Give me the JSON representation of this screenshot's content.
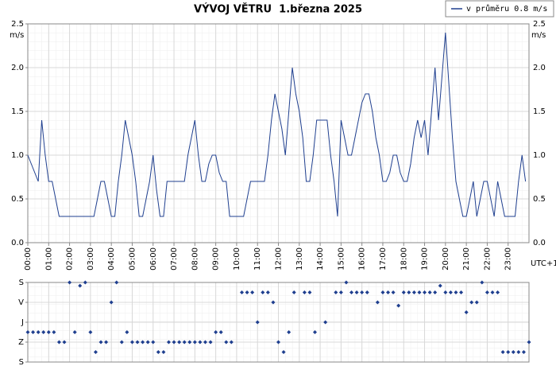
{
  "chart_data": [
    {
      "type": "line",
      "title": "VÝVOJ VĚTRU  1.března 2025",
      "y_label": "m/s",
      "x_label": "UTC+1",
      "x": [
        0,
        10,
        20,
        30,
        40,
        50,
        60,
        70,
        80,
        90,
        100,
        110,
        120,
        130,
        140,
        150,
        160,
        170,
        180,
        190,
        200,
        210,
        220,
        230,
        240,
        250,
        260,
        270,
        280,
        290,
        300,
        310,
        320,
        330,
        340,
        350,
        360,
        370,
        380,
        390,
        400,
        410,
        420,
        430,
        440,
        450,
        460,
        470,
        480,
        490,
        500,
        510,
        520,
        530,
        540,
        550,
        560,
        570,
        580,
        590,
        600,
        610,
        620,
        630,
        640,
        650,
        660,
        670,
        680,
        690,
        700,
        710,
        720,
        730,
        740,
        750,
        760,
        770,
        780,
        790,
        800,
        810,
        820,
        830,
        840,
        850,
        860,
        870,
        880,
        890,
        900,
        910,
        920,
        930,
        940,
        950,
        960,
        970,
        980,
        990,
        1000,
        1010,
        1020,
        1030,
        1040,
        1050,
        1060,
        1070,
        1080,
        1090,
        1100,
        1110,
        1120,
        1130,
        1140,
        1150,
        1160,
        1170,
        1180,
        1190,
        1200,
        1210,
        1220,
        1230,
        1240,
        1250,
        1260,
        1270,
        1280,
        1290,
        1300,
        1310,
        1320,
        1330,
        1340,
        1350,
        1360,
        1370,
        1380,
        1390,
        1400,
        1410,
        1420,
        1430
      ],
      "series": [
        {
          "name": "v průměru 0.8 m/s",
          "color": "#1f3f8f",
          "values": [
            1.0,
            0.9,
            0.8,
            0.7,
            1.4,
            1.0,
            0.7,
            0.7,
            0.5,
            0.3,
            0.3,
            0.3,
            0.3,
            0.3,
            0.3,
            0.3,
            0.3,
            0.3,
            0.3,
            0.3,
            0.5,
            0.7,
            0.7,
            0.5,
            0.3,
            0.3,
            0.7,
            1.0,
            1.4,
            1.2,
            1.0,
            0.7,
            0.3,
            0.3,
            0.5,
            0.7,
            1.0,
            0.6,
            0.3,
            0.3,
            0.7,
            0.7,
            0.7,
            0.7,
            0.7,
            0.7,
            1.0,
            1.2,
            1.4,
            1.0,
            0.7,
            0.7,
            0.9,
            1.0,
            1.0,
            0.8,
            0.7,
            0.7,
            0.3,
            0.3,
            0.3,
            0.3,
            0.3,
            0.5,
            0.7,
            0.7,
            0.7,
            0.7,
            0.7,
            1.0,
            1.4,
            1.7,
            1.5,
            1.3,
            1.0,
            1.5,
            2.0,
            1.7,
            1.5,
            1.2,
            0.7,
            0.7,
            1.0,
            1.4,
            1.4,
            1.4,
            1.4,
            1.0,
            0.7,
            0.3,
            1.4,
            1.2,
            1.0,
            1.0,
            1.2,
            1.4,
            1.6,
            1.7,
            1.7,
            1.5,
            1.2,
            1.0,
            0.7,
            0.7,
            0.8,
            1.0,
            1.0,
            0.8,
            0.7,
            0.7,
            0.9,
            1.2,
            1.4,
            1.2,
            1.4,
            1.0,
            1.5,
            2.0,
            1.4,
            1.9,
            2.4,
            1.8,
            1.2,
            0.7,
            0.5,
            0.3,
            0.3,
            0.5,
            0.7,
            0.3,
            0.5,
            0.7,
            0.7,
            0.5,
            0.3,
            0.7,
            0.5,
            0.3,
            0.3,
            0.3,
            0.3,
            0.7,
            1.0,
            0.7
          ]
        }
      ],
      "xlim": [
        0,
        1440
      ],
      "xticks": [
        {
          "value": 0,
          "label": "00:00"
        },
        {
          "value": 60,
          "label": "01:00"
        },
        {
          "value": 120,
          "label": "02:00"
        },
        {
          "value": 180,
          "label": "03:00"
        },
        {
          "value": 240,
          "label": "04:00"
        },
        {
          "value": 300,
          "label": "05:00"
        },
        {
          "value": 360,
          "label": "06:00"
        },
        {
          "value": 420,
          "label": "07:00"
        },
        {
          "value": 480,
          "label": "08:00"
        },
        {
          "value": 540,
          "label": "09:00"
        },
        {
          "value": 600,
          "label": "10:00"
        },
        {
          "value": 660,
          "label": "11:00"
        },
        {
          "value": 720,
          "label": "12:00"
        },
        {
          "value": 780,
          "label": "13:00"
        },
        {
          "value": 840,
          "label": "14:00"
        },
        {
          "value": 900,
          "label": "15:00"
        },
        {
          "value": 960,
          "label": "16:00"
        },
        {
          "value": 1020,
          "label": "17:00"
        },
        {
          "value": 1080,
          "label": "18:00"
        },
        {
          "value": 1140,
          "label": "19:00"
        },
        {
          "value": 1200,
          "label": "20:00"
        },
        {
          "value": 1260,
          "label": "21:00"
        },
        {
          "value": 1320,
          "label": "22:00"
        },
        {
          "value": 1380,
          "label": "23:00"
        }
      ],
      "ylim": [
        0,
        2.5
      ],
      "yticks": [
        {
          "value": 0,
          "label": "0.0"
        },
        0.5,
        {
          "value": 1,
          "label": "1.0"
        },
        1.5,
        {
          "value": 2,
          "label": "2.0"
        },
        2.5
      ],
      "grid": true,
      "legend": "top-right"
    },
    {
      "type": "scatter",
      "color": "#1f3f8f",
      "x": [
        0,
        15,
        30,
        45,
        60,
        75,
        90,
        105,
        120,
        135,
        150,
        165,
        180,
        195,
        210,
        225,
        240,
        255,
        270,
        285,
        300,
        315,
        330,
        345,
        360,
        375,
        390,
        405,
        420,
        435,
        450,
        465,
        480,
        495,
        510,
        525,
        540,
        555,
        570,
        585,
        615,
        630,
        645,
        660,
        675,
        690,
        705,
        720,
        735,
        750,
        765,
        795,
        810,
        825,
        855,
        885,
        900,
        915,
        930,
        945,
        960,
        975,
        1005,
        1020,
        1035,
        1050,
        1065,
        1080,
        1095,
        1110,
        1125,
        1140,
        1155,
        1170,
        1185,
        1200,
        1215,
        1230,
        1245,
        1260,
        1275,
        1290,
        1305,
        1320,
        1335,
        1350,
        1365,
        1380,
        1395,
        1410,
        1425,
        1440
      ],
      "values": [
        225,
        225,
        225,
        225,
        225,
        225,
        270,
        270,
        0,
        225,
        15,
        0,
        225,
        315,
        270,
        270,
        90,
        0,
        270,
        225,
        270,
        270,
        270,
        270,
        270,
        315,
        315,
        270,
        270,
        270,
        270,
        270,
        270,
        270,
        270,
        270,
        225,
        225,
        270,
        270,
        45,
        45,
        45,
        180,
        45,
        45,
        90,
        270,
        315,
        225,
        45,
        45,
        45,
        225,
        180,
        45,
        45,
        0,
        45,
        45,
        45,
        45,
        90,
        45,
        45,
        45,
        105,
        45,
        45,
        45,
        45,
        45,
        45,
        45,
        15,
        45,
        45,
        45,
        45,
        135,
        90,
        90,
        0,
        45,
        45,
        45,
        315,
        315,
        315,
        315,
        315,
        270
      ],
      "xlim": [
        0,
        1440
      ],
      "ylim": [
        0,
        360
      ],
      "y_inverted": true,
      "yticks": [
        {
          "value": 0,
          "label": "S"
        },
        {
          "value": 90,
          "label": "V"
        },
        {
          "value": 180,
          "label": "J"
        },
        {
          "value": 270,
          "label": "Z"
        },
        {
          "value": 360,
          "label": "S"
        }
      ],
      "grid": true
    }
  ]
}
